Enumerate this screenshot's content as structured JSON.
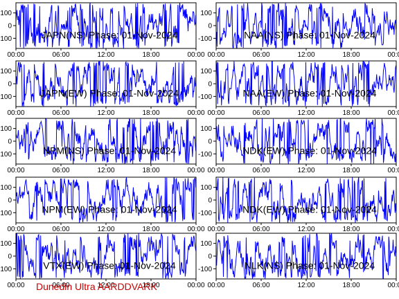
{
  "footer": {
    "label": "Dunedin Ultra AARDDVARK"
  },
  "colors": {
    "trace": "#0000ff",
    "frame": "#000000",
    "footer": "#cc0000"
  },
  "chart_data": [
    {
      "type": "line",
      "title": "JAPN(NS) Phase: 01-Nov-2024",
      "x_ticks": [
        "00:00",
        "06:00",
        "12:00",
        "18:00",
        "00:00"
      ],
      "y_ticks": [
        "-100",
        "0",
        "100"
      ],
      "ylim": [
        -180,
        180
      ],
      "xlim_hours": [
        0,
        24
      ],
      "series": [
        {
          "style": "dense oscillating phase trace spanning the full y range"
        }
      ]
    },
    {
      "type": "line",
      "title": "NAA(NS) Phase: 01-Nov-2024",
      "x_ticks": [
        "00:00",
        "06:00",
        "12:00",
        "18:00",
        "00:00"
      ],
      "y_ticks": [
        "-100",
        "0",
        "100"
      ],
      "ylim": [
        -180,
        180
      ],
      "xlim_hours": [
        0,
        24
      ],
      "series": [
        {
          "style": "dense oscillating phase trace spanning the full y range"
        }
      ]
    },
    {
      "type": "line",
      "title": "JAPN(EW) Phase: 01-Nov-2024",
      "x_ticks": [
        "00:00",
        "06:00",
        "12:00",
        "18:00",
        "00:00"
      ],
      "y_ticks": [
        "-100",
        "0",
        "100"
      ],
      "ylim": [
        -180,
        180
      ],
      "xlim_hours": [
        0,
        24
      ],
      "series": [
        {
          "style": "dense oscillating phase trace spanning the full y range"
        }
      ]
    },
    {
      "type": "line",
      "title": "NAA(EW) Phase: 01-Nov-2024",
      "x_ticks": [
        "00:00",
        "06:00",
        "12:00",
        "18:00",
        "00:00"
      ],
      "y_ticks": [
        "-100",
        "0",
        "100"
      ],
      "ylim": [
        -180,
        180
      ],
      "xlim_hours": [
        0,
        24
      ],
      "series": [
        {
          "style": "dense oscillating phase trace spanning the full y range"
        }
      ]
    },
    {
      "type": "line",
      "title": "NPM(NS) Phase: 01-Nov-2024",
      "x_ticks": [
        "00:00",
        "06:00",
        "12:00",
        "18:00",
        "00:00"
      ],
      "y_ticks": [
        "-100",
        "0",
        "100"
      ],
      "ylim": [
        -180,
        180
      ],
      "xlim_hours": [
        0,
        24
      ],
      "series": [
        {
          "style": "dense oscillating phase trace spanning the full y range"
        }
      ]
    },
    {
      "type": "line",
      "title": "NDK(EW) Phase: 01-Nov-2024",
      "x_ticks": [
        "00:00",
        "06:00",
        "12:00",
        "18:00",
        "00:00"
      ],
      "y_ticks": [
        "-100",
        "0",
        "100"
      ],
      "ylim": [
        -180,
        180
      ],
      "xlim_hours": [
        0,
        24
      ],
      "series": [
        {
          "style": "dense oscillating phase trace spanning the full y range"
        }
      ]
    },
    {
      "type": "line",
      "title": "NPM(EW) Phase: 01-Nov-2024",
      "x_ticks": [
        "00:00",
        "06:00",
        "12:00",
        "18:00",
        "00:00"
      ],
      "y_ticks": [
        "-100",
        "0",
        "100"
      ],
      "ylim": [
        -180,
        180
      ],
      "xlim_hours": [
        0,
        24
      ],
      "series": [
        {
          "style": "dense oscillating phase trace spanning the full y range"
        }
      ]
    },
    {
      "type": "line",
      "title": "NDK(EW) Phase: 01-Nov-2024",
      "x_ticks": [
        "00:00",
        "06:00",
        "12:00",
        "18:00",
        "00:00"
      ],
      "y_ticks": [
        "-100",
        "0",
        "100"
      ],
      "ylim": [
        -180,
        180
      ],
      "xlim_hours": [
        0,
        24
      ],
      "series": [
        {
          "style": "dense oscillating phase trace spanning the full y range"
        }
      ]
    },
    {
      "type": "line",
      "title": "VTX(EW) Phase: 01-Nov-2024",
      "x_ticks": [
        "00:00",
        "06:00",
        "12:00",
        "18:00",
        "00:00"
      ],
      "y_ticks": [
        "-100",
        "0",
        "100"
      ],
      "ylim": [
        -180,
        180
      ],
      "xlim_hours": [
        0,
        24
      ],
      "series": [
        {
          "style": "dense oscillating phase trace spanning the full y range"
        }
      ]
    },
    {
      "type": "line",
      "title": "NLK(NS) Phase: 01-Nov-2024",
      "x_ticks": [
        "00:00",
        "06:00",
        "12:00",
        "18:00",
        "00:00"
      ],
      "y_ticks": [
        "-100",
        "0",
        "100"
      ],
      "ylim": [
        -180,
        180
      ],
      "xlim_hours": [
        0,
        24
      ],
      "series": [
        {
          "style": "dense oscillating phase trace spanning the full y range"
        }
      ]
    }
  ]
}
